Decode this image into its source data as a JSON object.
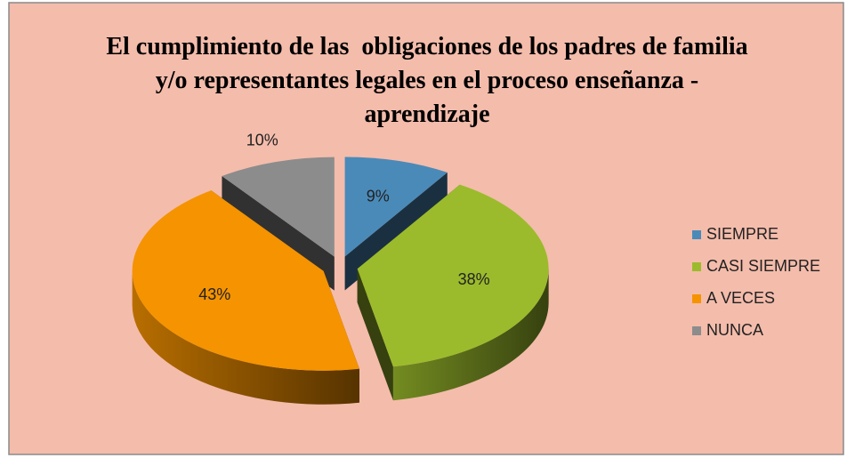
{
  "chart_data": {
    "type": "pie",
    "title": "El cumplimiento de las  obligaciones de los padres de familia y/o representantes legales en el proceso enseñanza - aprendizaje",
    "categories": [
      "SIEMPRE",
      "CASI SIEMPRE",
      "A VECES",
      "NUNCA"
    ],
    "values": [
      9,
      38,
      43,
      10
    ],
    "value_labels": [
      "9%",
      "38%",
      "43%",
      "10%"
    ],
    "colors": [
      "#4a8ab9",
      "#9bbb2c",
      "#f59300",
      "#8c8c8c"
    ],
    "legend": "right"
  }
}
